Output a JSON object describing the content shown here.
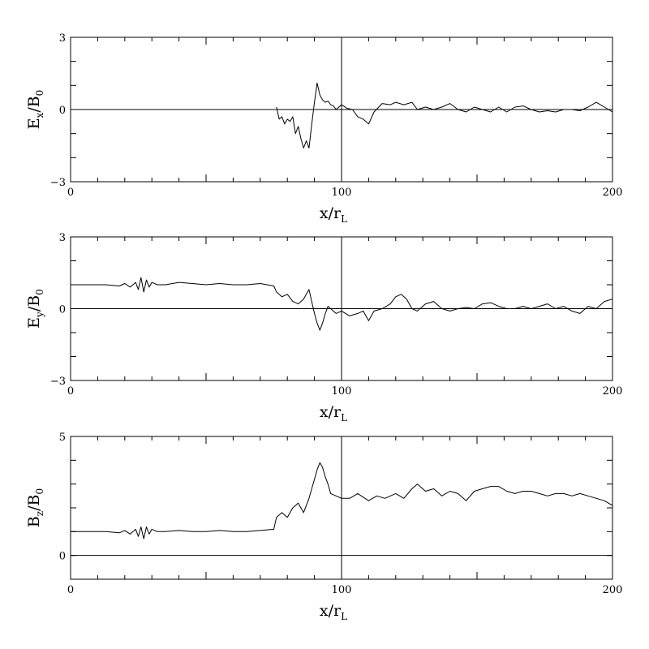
{
  "chart_data": [
    {
      "type": "line",
      "ylabel_main": "E",
      "ylabel_sub": "x",
      "ylabel_rest": "/B",
      "ylabel_sub2": "0",
      "xlabel_main": "x/r",
      "xlabel_sub": "L",
      "xlim": [
        0,
        200
      ],
      "ylim": [
        -3,
        3
      ],
      "x_ticks": [
        "0",
        "100",
        "200"
      ],
      "y_ticks": [
        "−3",
        "0",
        "3"
      ],
      "vline_x": 100,
      "hline_y": 0,
      "x": [
        76,
        77,
        78,
        79,
        80,
        81,
        82,
        83,
        84,
        85,
        86,
        87,
        88,
        89,
        90,
        91,
        92,
        93,
        94,
        95,
        96,
        97,
        98,
        99,
        100,
        102,
        104,
        106,
        108,
        110,
        112,
        115,
        118,
        120,
        123,
        126,
        128,
        131,
        134,
        137,
        140,
        143,
        146,
        149,
        152,
        155,
        158,
        161,
        164,
        167,
        170,
        173,
        176,
        179,
        182,
        185,
        188,
        191,
        194,
        197,
        200
      ],
      "values": [
        0.1,
        -0.4,
        -0.3,
        -0.6,
        -0.4,
        -0.5,
        -0.3,
        -1.0,
        -0.7,
        -1.2,
        -1.6,
        -1.3,
        -1.6,
        -0.6,
        0.3,
        1.1,
        0.6,
        0.4,
        0.3,
        0.35,
        0.2,
        0.15,
        0.0,
        0.1,
        0.2,
        0.05,
        0.0,
        -0.3,
        -0.4,
        -0.6,
        -0.1,
        0.25,
        0.2,
        0.3,
        0.2,
        0.3,
        0.0,
        0.1,
        0.0,
        0.1,
        0.25,
        0.0,
        -0.1,
        0.1,
        0.0,
        -0.1,
        0.1,
        -0.1,
        0.1,
        0.15,
        0.0,
        -0.1,
        -0.05,
        -0.1,
        0.0,
        0.0,
        -0.05,
        0.1,
        0.3,
        0.1,
        -0.1
      ]
    },
    {
      "type": "line",
      "ylabel_main": "E",
      "ylabel_sub": "y",
      "ylabel_rest": "/B",
      "ylabel_sub2": "0",
      "xlabel_main": "x/r",
      "xlabel_sub": "L",
      "xlim": [
        0,
        200
      ],
      "ylim": [
        -3,
        3
      ],
      "x_ticks": [
        "0",
        "100",
        "200"
      ],
      "y_ticks": [
        "−3",
        "0",
        "3"
      ],
      "vline_x": 100,
      "hline_y": 0,
      "x": [
        0,
        13,
        18,
        20,
        22,
        24,
        25,
        26,
        27,
        28,
        29,
        30,
        32,
        35,
        40,
        45,
        50,
        55,
        60,
        65,
        70,
        75,
        76,
        78,
        80,
        82,
        84,
        86,
        88,
        90,
        91,
        92,
        93,
        94,
        95,
        96,
        98,
        100,
        103,
        106,
        108,
        110,
        112,
        115,
        118,
        120,
        122,
        124,
        126,
        128,
        131,
        134,
        137,
        140,
        143,
        146,
        149,
        152,
        155,
        158,
        161,
        164,
        167,
        170,
        173,
        176,
        179,
        182,
        185,
        188,
        191,
        194,
        197,
        200
      ],
      "values": [
        1.0,
        1.0,
        0.95,
        1.05,
        0.9,
        1.1,
        0.8,
        1.3,
        0.7,
        1.2,
        0.9,
        1.1,
        1.0,
        1.0,
        1.1,
        1.05,
        1.0,
        1.05,
        1.0,
        1.0,
        1.05,
        0.95,
        0.7,
        0.5,
        0.6,
        0.3,
        0.2,
        0.4,
        0.8,
        -0.2,
        -0.6,
        -0.9,
        -0.6,
        -0.2,
        0.1,
        0.0,
        -0.2,
        -0.1,
        -0.3,
        -0.2,
        -0.1,
        -0.5,
        -0.1,
        0.0,
        0.2,
        0.5,
        0.6,
        0.4,
        0.0,
        -0.1,
        0.2,
        0.3,
        0.0,
        -0.1,
        0.0,
        0.05,
        0.0,
        0.2,
        0.25,
        0.1,
        0.0,
        0.0,
        0.1,
        0.0,
        0.1,
        0.2,
        0.0,
        0.1,
        -0.1,
        -0.2,
        0.1,
        0.0,
        0.3,
        0.4
      ]
    },
    {
      "type": "line",
      "ylabel_main": "B",
      "ylabel_sub": "z",
      "ylabel_rest": "/B",
      "ylabel_sub2": "0",
      "xlabel_main": "x/r",
      "xlabel_sub": "L",
      "xlim": [
        0,
        200
      ],
      "ylim": [
        -1,
        5
      ],
      "x_ticks": [
        "0",
        "100",
        "200"
      ],
      "y_ticks": [
        "0",
        "5"
      ],
      "vline_x": 100,
      "hline_y": 0,
      "x": [
        0,
        13,
        18,
        20,
        22,
        24,
        25,
        26,
        27,
        28,
        29,
        30,
        32,
        35,
        40,
        45,
        50,
        55,
        60,
        65,
        70,
        75,
        76,
        78,
        80,
        82,
        84,
        86,
        88,
        90,
        91,
        92,
        93,
        94,
        95,
        96,
        98,
        100,
        103,
        106,
        110,
        113,
        116,
        120,
        123,
        126,
        128,
        131,
        134,
        137,
        140,
        143,
        146,
        149,
        152,
        155,
        158,
        161,
        164,
        167,
        170,
        173,
        176,
        179,
        182,
        185,
        188,
        191,
        194,
        197,
        200
      ],
      "values": [
        1.0,
        1.0,
        0.95,
        1.05,
        0.9,
        1.1,
        0.8,
        1.2,
        0.7,
        1.2,
        0.9,
        1.1,
        1.0,
        1.0,
        1.05,
        1.0,
        1.0,
        1.05,
        1.0,
        1.0,
        1.05,
        1.1,
        1.6,
        1.8,
        1.6,
        2.0,
        2.2,
        1.8,
        2.4,
        3.2,
        3.6,
        3.9,
        3.7,
        3.3,
        3.0,
        2.6,
        2.5,
        2.4,
        2.4,
        2.6,
        2.3,
        2.5,
        2.4,
        2.6,
        2.4,
        2.8,
        3.0,
        2.7,
        2.8,
        2.5,
        2.7,
        2.6,
        2.3,
        2.7,
        2.8,
        2.9,
        2.9,
        2.7,
        2.6,
        2.7,
        2.7,
        2.6,
        2.5,
        2.6,
        2.6,
        2.5,
        2.6,
        2.5,
        2.4,
        2.3,
        2.1
      ]
    }
  ]
}
